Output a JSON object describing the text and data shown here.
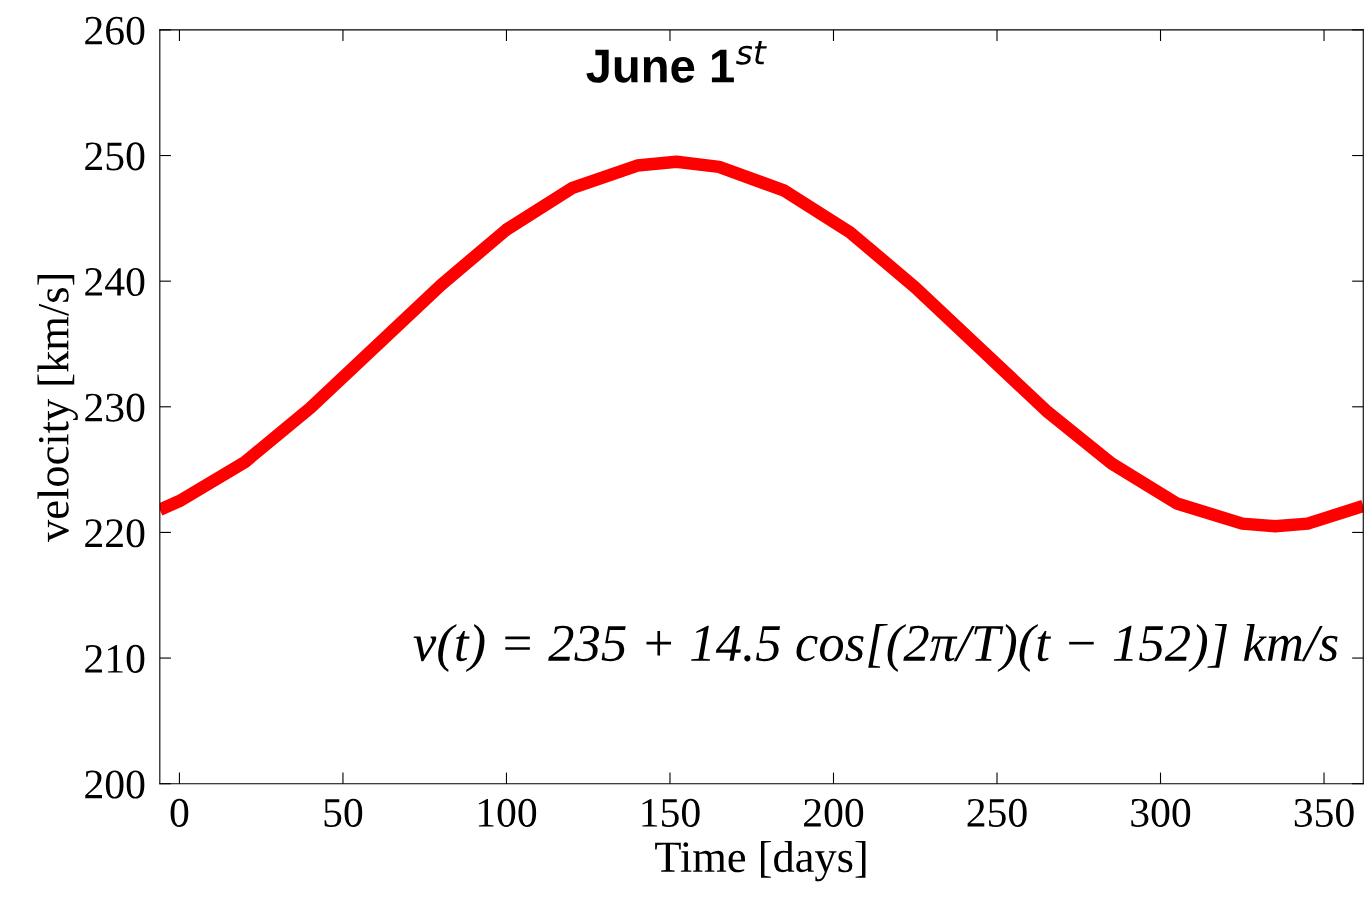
{
  "chart_data": {
    "type": "line",
    "xlabel": "Time [days]",
    "ylabel": "velocity [km/s]",
    "x": [
      -6,
      0,
      20,
      40,
      60,
      80,
      100,
      120,
      140,
      152,
      165,
      185,
      205,
      225,
      245,
      265,
      285,
      305,
      325,
      335,
      345,
      362
    ],
    "series": [
      {
        "color": "#ff0000",
        "values": [
          221.8,
          222.5,
          225.6,
          229.9,
          234.8,
          239.7,
          244.1,
          247.4,
          249.2,
          249.5,
          249.1,
          247.2,
          243.9,
          239.5,
          234.6,
          229.7,
          225.5,
          222.3,
          220.7,
          220.5,
          220.7,
          222.1
        ]
      }
    ],
    "xlim": [
      -6,
      362
    ],
    "ylim": [
      200,
      260
    ],
    "xticks": [
      0,
      50,
      100,
      150,
      200,
      250,
      300,
      350
    ],
    "yticks": [
      200,
      210,
      220,
      230,
      240,
      250,
      260
    ],
    "grid": false,
    "legend": false,
    "marker": "none",
    "line_style": "solid",
    "annotations": [
      {
        "text": "June 1$^{st}$",
        "x": 152,
        "y": 249.5
      },
      "v(t) = 235 + 14.5 cos[(2π/T)(t − 152)] km/s"
    ]
  }
}
